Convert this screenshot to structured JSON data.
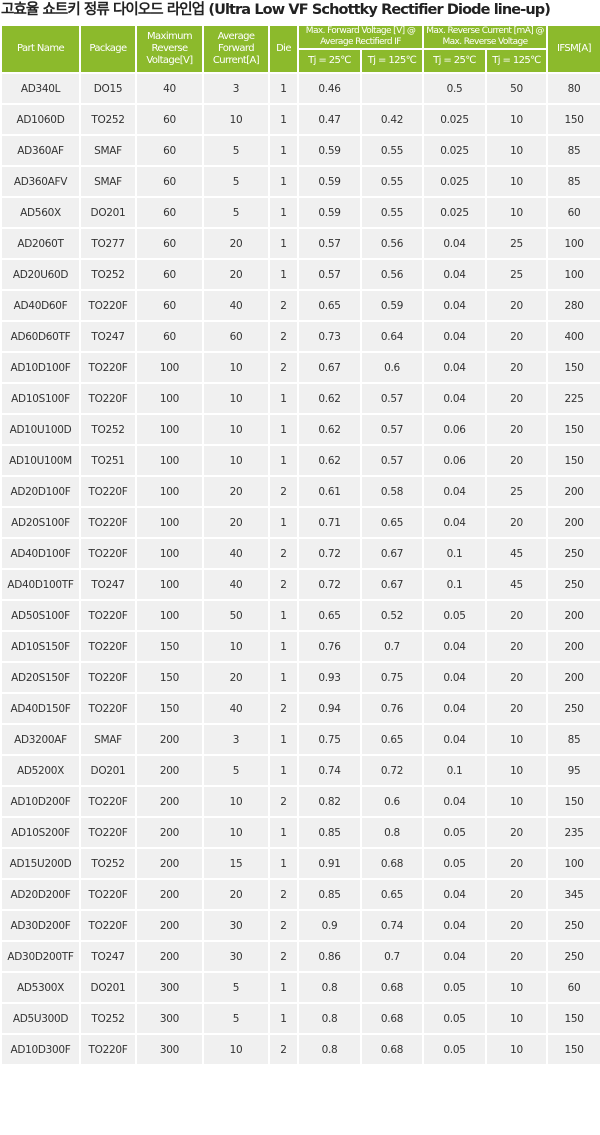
{
  "title": "고효율 쇼트키 정류 다이오드 라인업 (Ultra Low VF Schottky Rectifier Diode line-up)",
  "colors": {
    "header_bg": "#8cba2c",
    "row_bg": "#f0f0f0"
  },
  "headers": {
    "part_name": "Part Name",
    "package": "Package",
    "max_reverse_voltage": "Maximum Reverse Voltage[V]",
    "avg_forward_current": "Average Forward Current[A]",
    "die": "Die",
    "max_forward_voltage": "Max. Forward Voltage [V] @ Average Rectifierd IF",
    "max_reverse_current": "Max. Reverse Current [mA] @ Max. Reverse Voltage",
    "ifsm": "IFSM[A]",
    "tj25": "Tj = 25℃",
    "tj125": "Tj = 125℃"
  },
  "rows": [
    [
      "AD340L",
      "DO15",
      "40",
      "3",
      "1",
      "0.46",
      "",
      "0.5",
      "50",
      "80"
    ],
    [
      "AD1060D",
      "TO252",
      "60",
      "10",
      "1",
      "0.47",
      "0.42",
      "0.025",
      "10",
      "150"
    ],
    [
      "AD360AF",
      "SMAF",
      "60",
      "5",
      "1",
      "0.59",
      "0.55",
      "0.025",
      "10",
      "85"
    ],
    [
      "AD360AFV",
      "SMAF",
      "60",
      "5",
      "1",
      "0.59",
      "0.55",
      "0.025",
      "10",
      "85"
    ],
    [
      "AD560X",
      "DO201",
      "60",
      "5",
      "1",
      "0.59",
      "0.55",
      "0.025",
      "10",
      "60"
    ],
    [
      "AD2060T",
      "TO277",
      "60",
      "20",
      "1",
      "0.57",
      "0.56",
      "0.04",
      "25",
      "100"
    ],
    [
      "AD20U60D",
      "TO252",
      "60",
      "20",
      "1",
      "0.57",
      "0.56",
      "0.04",
      "25",
      "100"
    ],
    [
      "AD40D60F",
      "TO220F",
      "60",
      "40",
      "2",
      "0.65",
      "0.59",
      "0.04",
      "20",
      "280"
    ],
    [
      "AD60D60TF",
      "TO247",
      "60",
      "60",
      "2",
      "0.73",
      "0.64",
      "0.04",
      "20",
      "400"
    ],
    [
      "AD10D100F",
      "TO220F",
      "100",
      "10",
      "2",
      "0.67",
      "0.6",
      "0.04",
      "20",
      "150"
    ],
    [
      "AD10S100F",
      "TO220F",
      "100",
      "10",
      "1",
      "0.62",
      "0.57",
      "0.04",
      "20",
      "225"
    ],
    [
      "AD10U100D",
      "TO252",
      "100",
      "10",
      "1",
      "0.62",
      "0.57",
      "0.06",
      "20",
      "150"
    ],
    [
      "AD10U100M",
      "TO251",
      "100",
      "10",
      "1",
      "0.62",
      "0.57",
      "0.06",
      "20",
      "150"
    ],
    [
      "AD20D100F",
      "TO220F",
      "100",
      "20",
      "2",
      "0.61",
      "0.58",
      "0.04",
      "25",
      "200"
    ],
    [
      "AD20S100F",
      "TO220F",
      "100",
      "20",
      "1",
      "0.71",
      "0.65",
      "0.04",
      "20",
      "200"
    ],
    [
      "AD40D100F",
      "TO220F",
      "100",
      "40",
      "2",
      "0.72",
      "0.67",
      "0.1",
      "45",
      "250"
    ],
    [
      "AD40D100TF",
      "TO247",
      "100",
      "40",
      "2",
      "0.72",
      "0.67",
      "0.1",
      "45",
      "250"
    ],
    [
      "AD50S100F",
      "TO220F",
      "100",
      "50",
      "1",
      "0.65",
      "0.52",
      "0.05",
      "20",
      "200"
    ],
    [
      "AD10S150F",
      "TO220F",
      "150",
      "10",
      "1",
      "0.76",
      "0.7",
      "0.04",
      "20",
      "200"
    ],
    [
      "AD20S150F",
      "TO220F",
      "150",
      "20",
      "1",
      "0.93",
      "0.75",
      "0.04",
      "20",
      "200"
    ],
    [
      "AD40D150F",
      "TO220F",
      "150",
      "40",
      "2",
      "0.94",
      "0.76",
      "0.04",
      "20",
      "250"
    ],
    [
      "AD3200AF",
      "SMAF",
      "200",
      "3",
      "1",
      "0.75",
      "0.65",
      "0.04",
      "10",
      "85"
    ],
    [
      "AD5200X",
      "DO201",
      "200",
      "5",
      "1",
      "0.74",
      "0.72",
      "0.1",
      "10",
      "95"
    ],
    [
      "AD10D200F",
      "TO220F",
      "200",
      "10",
      "2",
      "0.82",
      "0.6",
      "0.04",
      "10",
      "150"
    ],
    [
      "AD10S200F",
      "TO220F",
      "200",
      "10",
      "1",
      "0.85",
      "0.8",
      "0.05",
      "20",
      "235"
    ],
    [
      "AD15U200D",
      "TO252",
      "200",
      "15",
      "1",
      "0.91",
      "0.68",
      "0.05",
      "20",
      "100"
    ],
    [
      "AD20D200F",
      "TO220F",
      "200",
      "20",
      "2",
      "0.85",
      "0.65",
      "0.04",
      "20",
      "345"
    ],
    [
      "AD30D200F",
      "TO220F",
      "200",
      "30",
      "2",
      "0.9",
      "0.74",
      "0.04",
      "20",
      "250"
    ],
    [
      "AD30D200TF",
      "TO247",
      "200",
      "30",
      "2",
      "0.86",
      "0.7",
      "0.04",
      "20",
      "250"
    ],
    [
      "AD5300X",
      "DO201",
      "300",
      "5",
      "1",
      "0.8",
      "0.68",
      "0.05",
      "10",
      "60"
    ],
    [
      "AD5U300D",
      "TO252",
      "300",
      "5",
      "1",
      "0.8",
      "0.68",
      "0.05",
      "10",
      "150"
    ],
    [
      "AD10D300F",
      "TO220F",
      "300",
      "10",
      "2",
      "0.8",
      "0.68",
      "0.05",
      "10",
      "150"
    ]
  ]
}
